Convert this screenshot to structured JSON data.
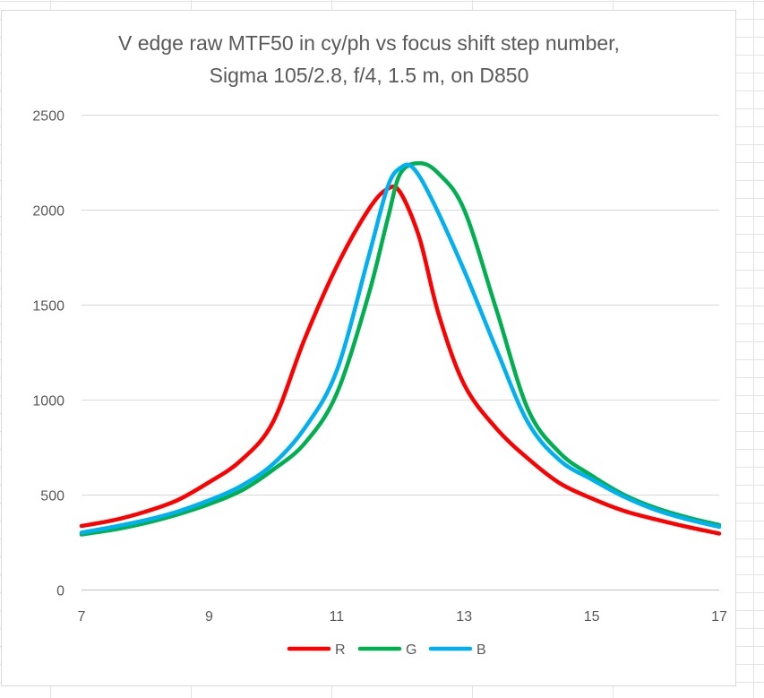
{
  "chart_data": {
    "type": "line",
    "title_lines": [
      "V edge raw MTF50 in cy/ph vs focus shift step number,",
      "Sigma 105/2.8, f/4, 1.5 m, on D850"
    ],
    "xlabel": "",
    "ylabel": "",
    "xlim": [
      7,
      17
    ],
    "ylim": [
      0,
      2500
    ],
    "x_ticks": [
      7,
      9,
      11,
      13,
      15,
      17
    ],
    "y_ticks": [
      0,
      500,
      1000,
      1500,
      2000,
      2500
    ],
    "grid": "horizontal",
    "legend_position": "bottom",
    "series": [
      {
        "name": "R",
        "color": "#ff0000",
        "points": [
          [
            7,
            335
          ],
          [
            7.5,
            365
          ],
          [
            8,
            410
          ],
          [
            8.5,
            470
          ],
          [
            9,
            565
          ],
          [
            9.5,
            680
          ],
          [
            10,
            880
          ],
          [
            10.5,
            1320
          ],
          [
            11,
            1700
          ],
          [
            11.5,
            2000
          ],
          [
            11.8,
            2110
          ],
          [
            12,
            2090
          ],
          [
            12.3,
            1850
          ],
          [
            12.6,
            1450
          ],
          [
            13,
            1080
          ],
          [
            13.5,
            850
          ],
          [
            14,
            690
          ],
          [
            14.5,
            560
          ],
          [
            15,
            480
          ],
          [
            15.5,
            415
          ],
          [
            16,
            370
          ],
          [
            16.5,
            330
          ],
          [
            17,
            295
          ]
        ]
      },
      {
        "name": "G",
        "color": "#00b050",
        "points": [
          [
            7,
            290
          ],
          [
            7.5,
            315
          ],
          [
            8,
            350
          ],
          [
            8.5,
            395
          ],
          [
            9,
            450
          ],
          [
            9.5,
            520
          ],
          [
            10,
            630
          ],
          [
            10.5,
            770
          ],
          [
            11,
            1030
          ],
          [
            11.5,
            1550
          ],
          [
            11.8,
            1950
          ],
          [
            12,
            2190
          ],
          [
            12.3,
            2245
          ],
          [
            12.6,
            2190
          ],
          [
            13,
            2000
          ],
          [
            13.5,
            1480
          ],
          [
            14,
            950
          ],
          [
            14.5,
            720
          ],
          [
            15,
            600
          ],
          [
            15.5,
            500
          ],
          [
            16,
            430
          ],
          [
            16.5,
            380
          ],
          [
            17,
            340
          ]
        ]
      },
      {
        "name": "B",
        "color": "#00b0f0",
        "points": [
          [
            7,
            300
          ],
          [
            7.5,
            330
          ],
          [
            8,
            365
          ],
          [
            8.5,
            410
          ],
          [
            9,
            470
          ],
          [
            9.5,
            545
          ],
          [
            10,
            660
          ],
          [
            10.5,
            850
          ],
          [
            11,
            1150
          ],
          [
            11.5,
            1750
          ],
          [
            11.8,
            2120
          ],
          [
            12,
            2220
          ],
          [
            12.2,
            2220
          ],
          [
            12.5,
            2050
          ],
          [
            13,
            1680
          ],
          [
            13.5,
            1270
          ],
          [
            14,
            880
          ],
          [
            14.5,
            680
          ],
          [
            15,
            580
          ],
          [
            15.5,
            490
          ],
          [
            16,
            420
          ],
          [
            16.5,
            370
          ],
          [
            17,
            330
          ]
        ]
      }
    ]
  }
}
